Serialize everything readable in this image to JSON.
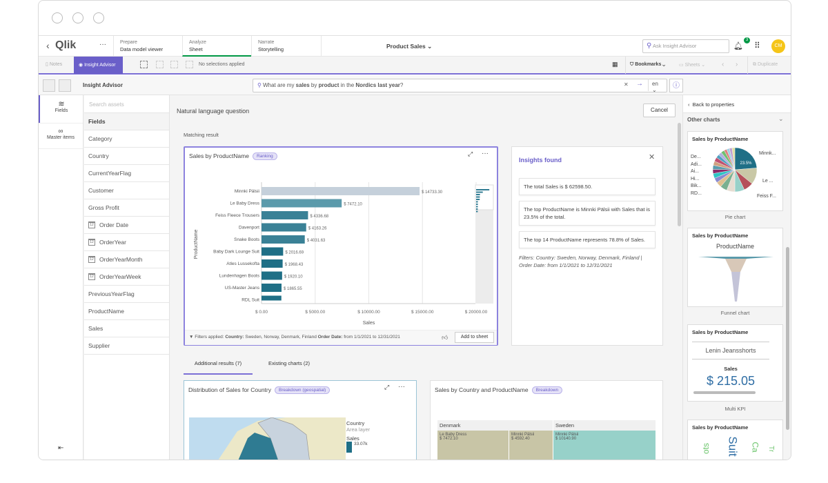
{
  "header": {
    "logo": "Qlik",
    "more": "···",
    "tabs": [
      {
        "top": "Prepare",
        "label": "Data model viewer"
      },
      {
        "top": "Analyze",
        "label": "Sheet"
      },
      {
        "top": "Narrate",
        "label": "Storytelling"
      }
    ],
    "app_title": "Product Sales",
    "search_placeholder": "Ask Insight Advisor",
    "notification_count": "3",
    "avatar": "CM"
  },
  "toolbar": {
    "notes": "Notes",
    "insight_advisor": "Insight Advisor",
    "selections": "No selections applied",
    "bookmarks": "Bookmarks",
    "sheets": "Sheets",
    "duplicate": "Duplicate"
  },
  "ia_bar": {
    "title": "Insight Advisor",
    "query_prefix": "What are my ",
    "q1": "sales",
    "q2": " by ",
    "q3": "product",
    "q4": " in the ",
    "q5": "Nordics last year",
    "q6": "?",
    "lang": "en"
  },
  "left_nav": [
    {
      "label": "Fields"
    },
    {
      "label": "Master items"
    }
  ],
  "assets": {
    "search_placeholder": "Search assets",
    "header": "Fields",
    "fields": [
      {
        "name": "Category"
      },
      {
        "name": "Country"
      },
      {
        "name": "CurrentYearFlag"
      },
      {
        "name": "Customer"
      },
      {
        "name": "Gross Profit"
      },
      {
        "name": "Order Date",
        "date": true
      },
      {
        "name": "OrderYear",
        "date": true
      },
      {
        "name": "OrderYearMonth",
        "date": true
      },
      {
        "name": "OrderYearWeek",
        "date": true
      },
      {
        "name": "PreviousYearFlag"
      },
      {
        "name": "ProductName"
      },
      {
        "name": "Sales"
      },
      {
        "name": "Supplier"
      }
    ]
  },
  "main": {
    "title": "Natural language question",
    "cancel": "Cancel",
    "matching": "Matching result",
    "chart": {
      "title": "Sales by ProductName",
      "badge": "Ranking",
      "xlabel": "Sales",
      "ylabel": "ProductName",
      "categories": [
        "Minnki Pälsii",
        "Le Baby Dress",
        "Feiss Fleece Trousers",
        "Davenport",
        "Snake Boots",
        "Baby Dark Lounge Suit",
        "Atles Lussekofta",
        "Lundenhagen Boots",
        "US-Master Jeans",
        "RDL Suit"
      ],
      "values": [
        14733.3,
        7472.1,
        4336.68,
        4163.26,
        4031.63,
        2016.69,
        1968.43,
        1920.1,
        1865.55,
        1850
      ],
      "labels": [
        "$ 14733.30",
        "$ 7472.10",
        "$ 4336.68",
        "$ 4163.26",
        "$ 4031.63",
        "$ 2016.69",
        "$ 1968.43",
        "$ 1920.10",
        "$ 1865.55",
        ""
      ],
      "xticks": [
        "$ 0.00",
        "$ 5000.00",
        "$ 10000.00",
        "$ 15000.00",
        "$ 20000.00"
      ],
      "xlim": [
        0,
        20000
      ],
      "colors": [
        "#c5d0db",
        "#5b9aab",
        "#3a8196",
        "#3a8196",
        "#3a8196",
        "#1f6f86",
        "#1f6f86",
        "#1f6f86",
        "#1f6f86",
        "#1f6f86"
      ]
    },
    "filters_label": "Filters applied:",
    "f_country_k": "Country:",
    "f_country_v": " Sweden, Norway, Denmark, Finland ",
    "f_date_k": "Order Date:",
    "f_date_v": " from 1/1/2021 to 12/31/2021",
    "add_to_sheet": "Add to sheet",
    "insights": {
      "title": "Insights found",
      "items": [
        "The total Sales is $ 62598.50.",
        "The top ProductName is Minnki Pälsii with Sales that is 23.5% of the total.",
        "The top 14 ProductName represents 78.8% of Sales."
      ],
      "filters": "Filters: Country: Sweden, Norway, Denmark, Finland | Order Date: from 1/1/2021 to 12/31/2021"
    },
    "tabs": [
      "Additional results (7)",
      "Existing charts (2)"
    ],
    "card2": {
      "title": "Distribution of Sales for Country",
      "badge": "Breakdown (geospatial)",
      "legend_title": "Country",
      "legend_sub": "Area layer",
      "legend_measure": "Sales",
      "legend_value": "33.07k"
    },
    "card3": {
      "title": "Sales by Country and ProductName",
      "badge": "Breakdown",
      "groups": [
        "Denmark",
        "Sweden"
      ],
      "cells": [
        {
          "name": "Le Baby Dress",
          "value": "$ 7472.10"
        },
        {
          "name": "Minnki Pälsii",
          "value": "$ 4592.40"
        },
        {
          "name": "Minnki Pälsii",
          "value": "$ 10140.90"
        }
      ]
    }
  },
  "right": {
    "back": "Back to properties",
    "section": "Other charts",
    "pie": {
      "title": "Sales by ProductName",
      "caption": "Pie chart",
      "pct": "23.5%",
      "labels_left": [
        "De...",
        "Adi...",
        "Ai...",
        "Hi...",
        "Bik...",
        "RD..."
      ],
      "labels_right": [
        "Minnk...",
        "Le ...",
        "Feiss F..."
      ]
    },
    "funnel": {
      "title": "Sales by ProductName",
      "caption": "Funnel chart",
      "dim": "ProductName"
    },
    "kpi": {
      "title": "Sales by ProductName",
      "caption": "Multi KPI",
      "item": "Lenin Jeansshorts",
      "measure": "Sales",
      "value": "$ 215.05"
    },
    "cloud": {
      "title": "Sales by ProductName",
      "words": [
        "ots",
        "Suit",
        "Ca",
        "Tr"
      ]
    }
  }
}
